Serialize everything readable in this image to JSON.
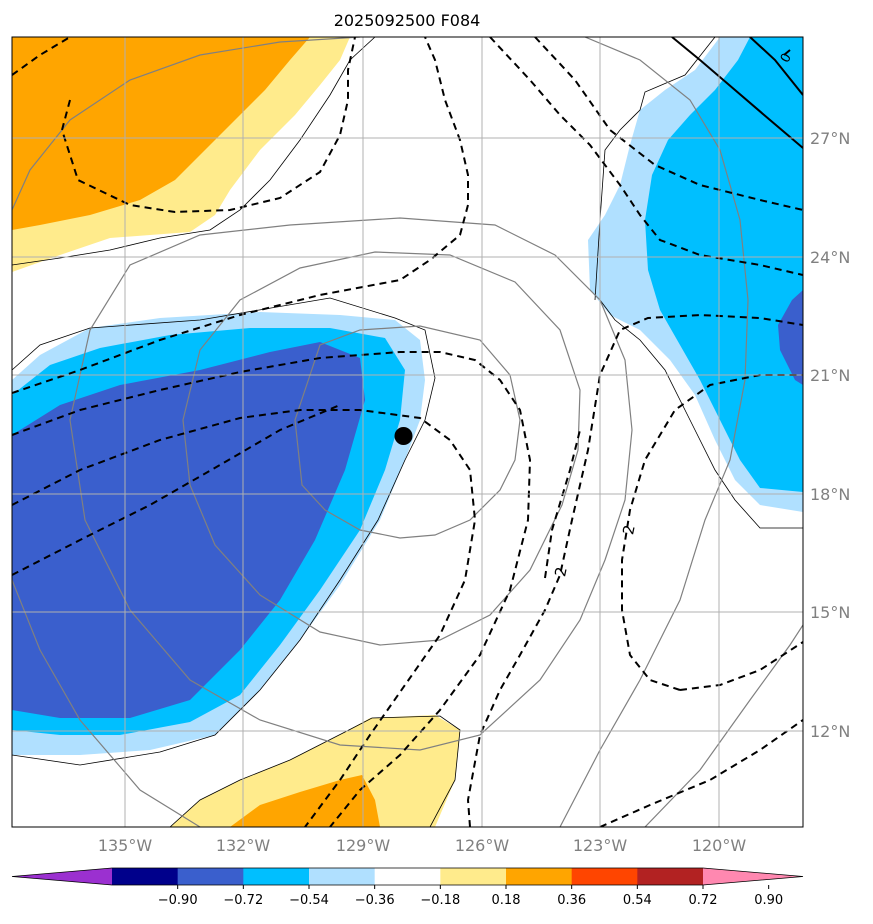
{
  "chart_data": {
    "type": "map",
    "title": "2025092500 F084",
    "lon_ticks": [
      "135°W",
      "132°W",
      "129°W",
      "126°W",
      "123°W",
      "120°W"
    ],
    "lat_ticks": [
      "27°N",
      "24°N",
      "21°N",
      "18°N",
      "15°N",
      "12°N"
    ],
    "lon_range": [
      -137.9,
      -117.9
    ],
    "lat_range": [
      9.6,
      29.6
    ],
    "marker": {
      "lon": -128.0,
      "lat": 19.5
    },
    "contour_labels": [
      {
        "text": "2",
        "lon": -124.0,
        "lat": 16.0
      },
      {
        "text": "2",
        "lon": -121.7,
        "lat": 17.1
      },
      {
        "text": "0",
        "lon": -118.5,
        "lat": 29.0
      }
    ],
    "colorbar": {
      "ticks": [
        "−0.90",
        "−0.72",
        "−0.54",
        "−0.36",
        "−0.18",
        "0.18",
        "0.36",
        "0.54",
        "0.72",
        "0.90"
      ],
      "colors": [
        "#9b30d0",
        "#00008b",
        "#3a5fcd",
        "#00bfff",
        "#b0e0ff",
        "#ffffff",
        "#ffeb8c",
        "#ffa500",
        "#ff4500",
        "#b22222",
        "#ff88b0"
      ]
    },
    "fill_colors": {
      "neg_light": "#b0e0ff",
      "neg_mid": "#00bfff",
      "neg_dark": "#3a5fcd",
      "pos_light": "#ffeb8c",
      "pos_mid": "#ffa500"
    }
  }
}
